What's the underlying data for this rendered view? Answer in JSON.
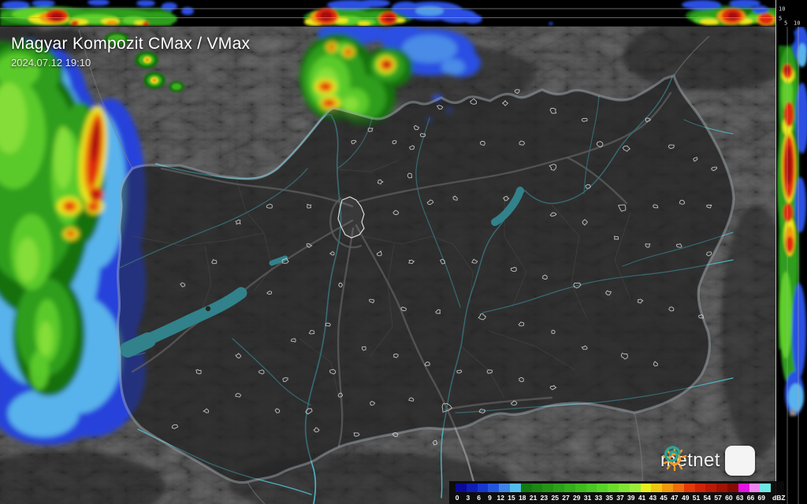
{
  "header": {
    "title": "Magyar Kompozit CMax / VMax",
    "timestamp": "2024.07.12 19:10"
  },
  "colorbar": {
    "unit": "dBZ",
    "ticks": [
      "0",
      "3",
      "6",
      "9",
      "12",
      "15",
      "18",
      "21",
      "23",
      "25",
      "27",
      "29",
      "31",
      "33",
      "35",
      "37",
      "39",
      "41",
      "43",
      "45",
      "47",
      "49",
      "51",
      "54",
      "57",
      "60",
      "63",
      "66",
      "69"
    ],
    "colors": [
      "#0a0a96",
      "#0f1fb4",
      "#1737cf",
      "#2356dc",
      "#3f84e4",
      "#55bdee",
      "#157a11",
      "#1d8715",
      "#259417",
      "#2da11a",
      "#36ae1d",
      "#40bb20",
      "#4cc723",
      "#5ad328",
      "#6cdd2d",
      "#82e634",
      "#9cee3d",
      "#e8ef1f",
      "#efc713",
      "#ef9b10",
      "#ec6e0d",
      "#e23a0b",
      "#d02409",
      "#b81b07",
      "#a01305",
      "#840c04",
      "#e214e2",
      "#ef86ef",
      "#6fe8e4"
    ]
  },
  "cross_sections": {
    "top_axis_ticks": [
      "10",
      "5"
    ],
    "right_axis_ticks": [
      "5",
      "10"
    ]
  },
  "logo": {
    "brand": "metnet"
  },
  "map_colors": {
    "lake": "#3fe2f4",
    "river": "#4db7c8",
    "country_border": "#9aa4aa",
    "logo_orange": "#f59d28",
    "logo_teal": "#2ba495"
  }
}
